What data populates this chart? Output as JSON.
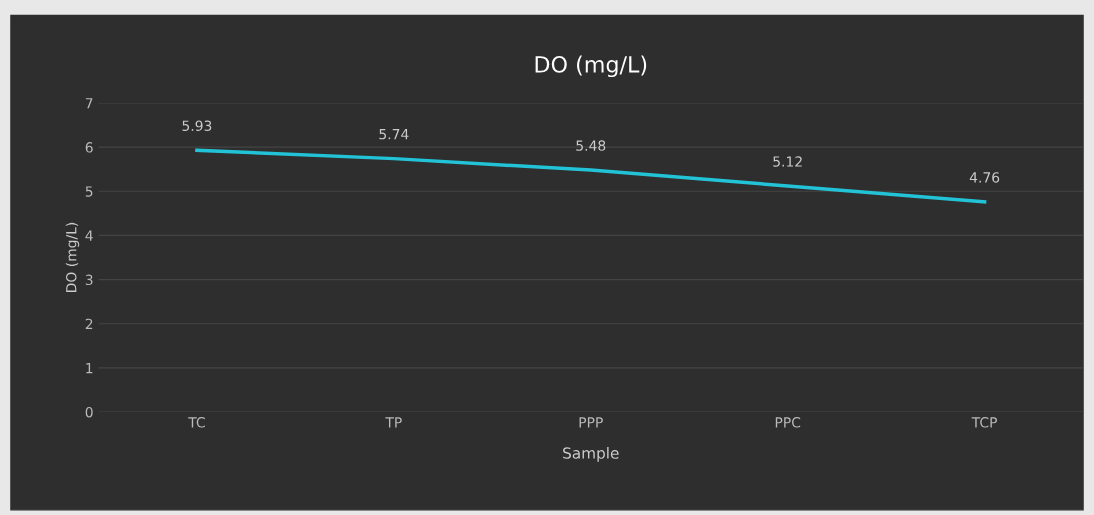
{
  "chart_data": {
    "type": "line",
    "title": "DO (mg/L)",
    "xlabel": "Sample",
    "ylabel": "DO (mg/L)",
    "categories": [
      "TC",
      "TP",
      "PPP",
      "PPC",
      "TCP"
    ],
    "series": [
      {
        "color": "#22c3d6",
        "values": [
          5.93,
          5.74,
          5.48,
          5.12,
          4.76
        ]
      }
    ],
    "ylim": [
      0,
      7
    ],
    "yticks": [
      0,
      1,
      2,
      3,
      4,
      5,
      6,
      7
    ],
    "grid": "y",
    "data_labels": true,
    "marker": "none",
    "line_style": "solid"
  }
}
